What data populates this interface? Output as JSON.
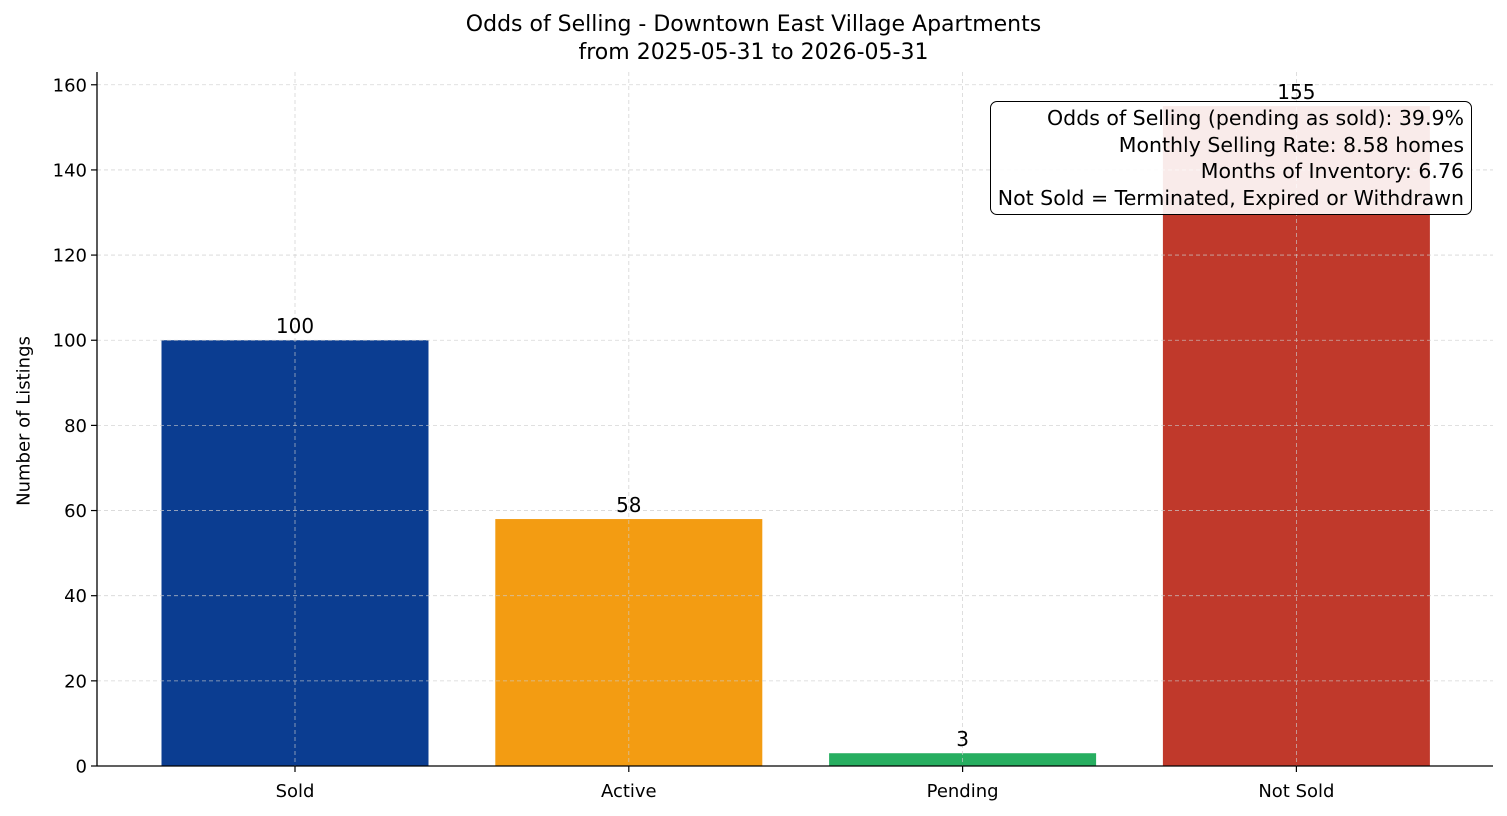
{
  "chart_data": {
    "type": "bar",
    "title": "Odds of Selling - Downtown East Village Apartments",
    "subtitle": "from 2025-05-31 to 2026-05-31",
    "xlabel": "",
    "ylabel": "Number of Listings",
    "categories": [
      "Sold",
      "Active",
      "Pending",
      "Not Sold"
    ],
    "values": [
      100,
      58,
      3,
      155
    ],
    "data_labels": [
      "100",
      "58",
      "3",
      "155"
    ],
    "colors": [
      "#0b3d91",
      "#f39c12",
      "#27ae60",
      "#c0392b"
    ],
    "ylim": [
      0,
      163
    ],
    "yticks": [
      0,
      20,
      40,
      60,
      80,
      100,
      120,
      140,
      160
    ],
    "grid": true,
    "annotation_lines": [
      "Odds of Selling (pending as sold): 39.9%",
      "Monthly Selling Rate: 8.58 homes",
      "Months of Inventory: 6.76",
      "Not Sold = Terminated, Expired or Withdrawn"
    ],
    "annotation_placement": "top-right"
  }
}
